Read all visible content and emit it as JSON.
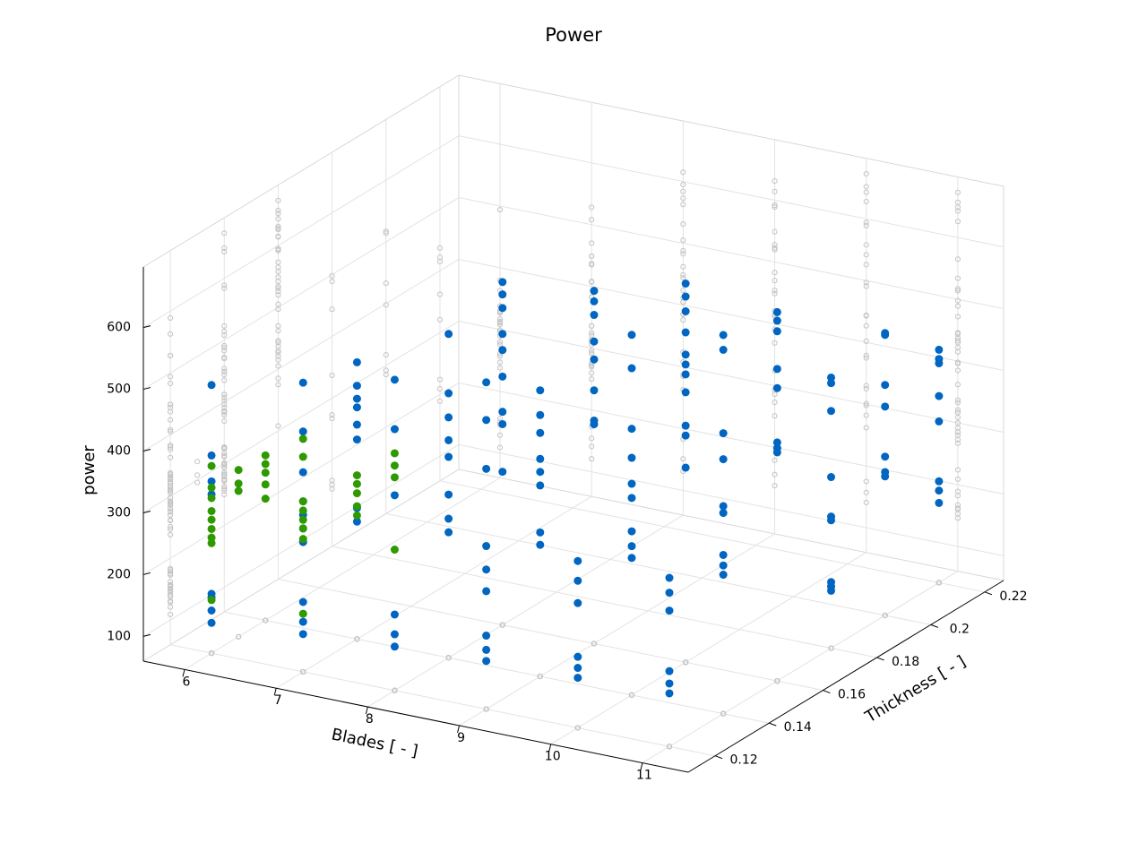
{
  "chart_data": {
    "type": "scatter3d",
    "title": "Power",
    "xlabel": "Blades [ - ]",
    "ylabel": "Thickness [ - ]",
    "zlabel": "power",
    "xlim": [
      5.55,
      11.5
    ],
    "ylim": [
      0.11,
      0.227
    ],
    "zlim": [
      60,
      698
    ],
    "xticks": [
      6,
      7,
      8,
      9,
      10,
      11
    ],
    "yticks": [
      0.12,
      0.14,
      0.16,
      0.18,
      0.2,
      0.22
    ],
    "zticks": [
      100,
      200,
      300,
      400,
      500,
      600
    ],
    "grid": true,
    "projections": true,
    "projection_color": "#c4c4c4",
    "series": [
      {
        "color": "#0066c2",
        "x": [
          6,
          6,
          6,
          6,
          6,
          6,
          6,
          6,
          7,
          7,
          7,
          7,
          7,
          7,
          7,
          7,
          7,
          7,
          7,
          7,
          7,
          7,
          7,
          7,
          7,
          7,
          8,
          8,
          8,
          8,
          8,
          8,
          8,
          8,
          8,
          8,
          8,
          8,
          8,
          8,
          8,
          8,
          8,
          8,
          8,
          8,
          8,
          8,
          8,
          9,
          9,
          9,
          9,
          9,
          9,
          9,
          9,
          9,
          9,
          9,
          9,
          9,
          9,
          9,
          9,
          9,
          9,
          9,
          9,
          9,
          9,
          9,
          9,
          9,
          10,
          10,
          10,
          10,
          10,
          10,
          10,
          10,
          10,
          10,
          10,
          10,
          10,
          10,
          10,
          10,
          10,
          10,
          10,
          10,
          10,
          10,
          10,
          10,
          10,
          10,
          11,
          11,
          11,
          11,
          11,
          11,
          11,
          11,
          11,
          11,
          11,
          11,
          11,
          11,
          11,
          11,
          11,
          11,
          11,
          11,
          11,
          11,
          11,
          11,
          11,
          11,
          11,
          11,
          11,
          11,
          11,
          11,
          11,
          11,
          11,
          11,
          11,
          11,
          11,
          11,
          11,
          11,
          11,
          11,
          11,
          11,
          11
        ],
        "y": [
          0.12,
          0.12,
          0.12,
          0.12,
          0.12,
          0.12,
          0.12,
          0.12,
          0.12,
          0.12,
          0.12,
          0.12,
          0.12,
          0.12,
          0.12,
          0.12,
          0.12,
          0.12,
          0.14,
          0.14,
          0.14,
          0.14,
          0.14,
          0.14,
          0.14,
          0.14,
          0.12,
          0.12,
          0.12,
          0.12,
          0.12,
          0.12,
          0.14,
          0.14,
          0.14,
          0.14,
          0.14,
          0.14,
          0.14,
          0.14,
          0.16,
          0.16,
          0.16,
          0.16,
          0.16,
          0.16,
          0.16,
          0.16,
          0.16,
          0.12,
          0.12,
          0.12,
          0.12,
          0.12,
          0.12,
          0.12,
          0.12,
          0.12,
          0.14,
          0.14,
          0.14,
          0.14,
          0.14,
          0.14,
          0.14,
          0.14,
          0.16,
          0.16,
          0.16,
          0.16,
          0.16,
          0.16,
          0.16,
          0.16,
          0.12,
          0.12,
          0.12,
          0.12,
          0.12,
          0.12,
          0.14,
          0.14,
          0.14,
          0.14,
          0.14,
          0.14,
          0.14,
          0.14,
          0.14,
          0.16,
          0.16,
          0.16,
          0.16,
          0.16,
          0.16,
          0.16,
          0.16,
          0.16,
          0.16,
          0.16,
          0.12,
          0.12,
          0.12,
          0.12,
          0.12,
          0.12,
          0.14,
          0.14,
          0.14,
          0.14,
          0.14,
          0.14,
          0.14,
          0.14,
          0.14,
          0.16,
          0.16,
          0.16,
          0.16,
          0.16,
          0.16,
          0.16,
          0.16,
          0.18,
          0.18,
          0.18,
          0.18,
          0.18,
          0.18,
          0.18,
          0.18,
          0.18,
          0.2,
          0.2,
          0.2,
          0.2,
          0.2,
          0.2,
          0.2,
          0.22,
          0.22,
          0.22,
          0.22,
          0.22,
          0.22,
          0.22,
          0.22
        ],
        "z": [
          109,
          129,
          150,
          156,
          494,
          380,
          338,
          317,
          121,
          141,
          173,
          270,
          292,
          314,
          336,
          383,
          449,
          528,
          508,
          470,
          449,
          435,
          407,
          383,
          272,
          250,
          183,
          151,
          131,
          563,
          483,
          376,
          584,
          488,
          449,
          412,
          385,
          324,
          285,
          263,
          615,
          595,
          573,
          531,
          505,
          462,
          405,
          385,
          308,
          179,
          156,
          138,
          324,
          286,
          251,
          589,
          528,
          449,
          523,
          483,
          454,
          412,
          391,
          369,
          293,
          273,
          631,
          614,
          592,
          549,
          520,
          470,
          421,
          415,
          175,
          157,
          141,
          330,
          298,
          262,
          643,
          589,
          491,
          444,
          402,
          379,
          325,
          301,
          282,
          673,
          652,
          628,
          594,
          558,
          542,
          526,
          497,
          443,
          427,
          375,
          182,
          162,
          146,
          333,
          309,
          280,
          673,
          649,
          514,
          472,
          396,
          385,
          317,
          300,
          285,
          657,
          643,
          626,
          565,
          534,
          446,
          437,
          430,
          498,
          489,
          444,
          337,
          273,
          267,
          167,
          160,
          153,
          517,
          514,
          433,
          398,
          317,
          292,
          285,
          437,
          422,
          415,
          362,
          321,
          224,
          209,
          189
        ]
      },
      {
        "color": "#2e9a00",
        "x": [
          6,
          6,
          6,
          6,
          6,
          6,
          6,
          6,
          6,
          6,
          6,
          6,
          6,
          6,
          6,
          6,
          6,
          7,
          7,
          7,
          7,
          7,
          7,
          7,
          7,
          7,
          7,
          7,
          7,
          7,
          8,
          8,
          8,
          8
        ],
        "y": [
          0.12,
          0.12,
          0.12,
          0.12,
          0.12,
          0.12,
          0.12,
          0.12,
          0.12,
          0.13,
          0.13,
          0.13,
          0.14,
          0.14,
          0.14,
          0.14,
          0.14,
          0.12,
          0.12,
          0.12,
          0.12,
          0.12,
          0.12,
          0.12,
          0.12,
          0.14,
          0.14,
          0.14,
          0.14,
          0.14,
          0.12,
          0.12,
          0.12,
          0.12
        ],
        "z": [
          363,
          328,
          311,
          290,
          276,
          261,
          247,
          238,
          146,
          330,
          308,
          296,
          327,
          313,
          299,
          280,
          257,
          437,
          408,
          275,
          154,
          336,
          321,
          306,
          292,
          325,
          311,
          296,
          275,
          260,
          444,
          424,
          405,
          288
        ]
      }
    ]
  }
}
